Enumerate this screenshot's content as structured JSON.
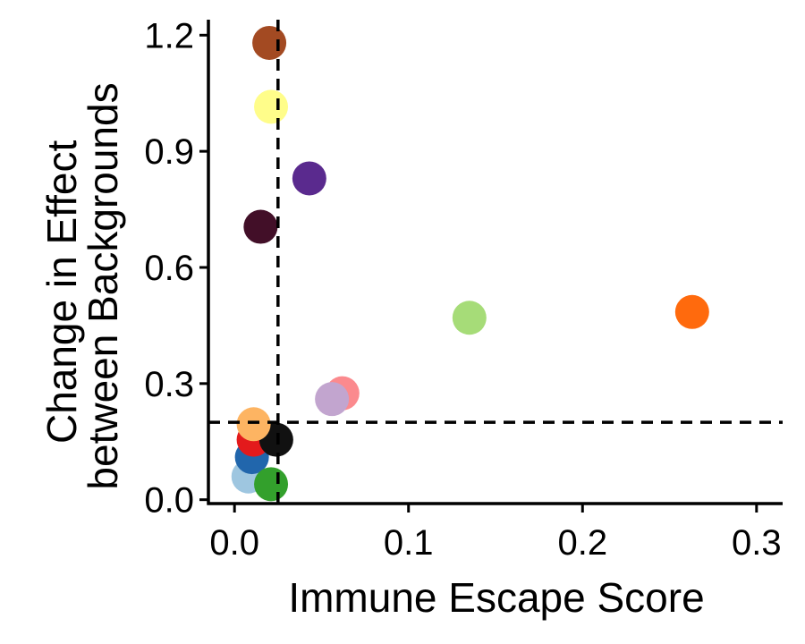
{
  "chart_data": {
    "type": "scatter",
    "title": "",
    "xlabel": "Immune Escape Score",
    "ylabel_lines": [
      "Change in Effect",
      "between Backgrounds"
    ],
    "xlim": [
      -0.015,
      0.315
    ],
    "ylim": [
      -0.01,
      1.24
    ],
    "x_ticks": [
      0.0,
      0.1,
      0.2,
      0.3
    ],
    "x_tick_labels": [
      "0.0",
      "0.1",
      "0.2",
      "0.3"
    ],
    "y_ticks": [
      0.0,
      0.3,
      0.6,
      0.9,
      1.2
    ],
    "y_tick_labels": [
      "0.0",
      "0.3",
      "0.6",
      "0.9",
      "1.2"
    ],
    "reference_lines": {
      "x": 0.025,
      "y": 0.2,
      "style": "dashed"
    },
    "grid": false,
    "legend": "none",
    "points": [
      {
        "x": 0.008,
        "y": 0.06,
        "color": "#9ec6e0"
      },
      {
        "x": 0.01,
        "y": 0.11,
        "color": "#2166ac"
      },
      {
        "x": 0.011,
        "y": 0.155,
        "color": "#e31a1c"
      },
      {
        "x": 0.024,
        "y": 0.155,
        "color": "#111111"
      },
      {
        "x": 0.011,
        "y": 0.195,
        "color": "#fdb462"
      },
      {
        "x": 0.021,
        "y": 0.04,
        "color": "#33a02c"
      },
      {
        "x": 0.062,
        "y": 0.275,
        "color": "#fb8a8e"
      },
      {
        "x": 0.056,
        "y": 0.26,
        "color": "#c2a5cf"
      },
      {
        "x": 0.135,
        "y": 0.47,
        "color": "#a6dc78"
      },
      {
        "x": 0.263,
        "y": 0.485,
        "color": "#ff6a0d"
      },
      {
        "x": 0.015,
        "y": 0.705,
        "color": "#420f28"
      },
      {
        "x": 0.043,
        "y": 0.83,
        "color": "#5a2a8e"
      },
      {
        "x": 0.021,
        "y": 1.015,
        "color": "#fffd8a"
      },
      {
        "x": 0.02,
        "y": 1.18,
        "color": "#a34a22"
      }
    ]
  }
}
